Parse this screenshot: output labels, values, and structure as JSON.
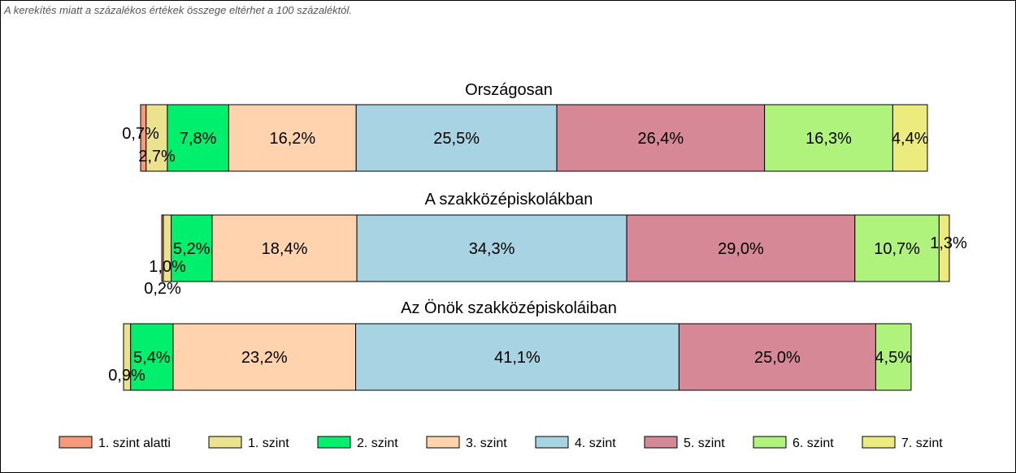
{
  "note": "A kerekítés miatt a  százalékos értékek összege eltérhet a 100 százaléktól.",
  "chart_data": {
    "type": "bar",
    "orientation": "horizontal",
    "stacked": true,
    "categories": [
      "Országosan",
      "A szakközépiskolákban",
      "Az Önök szakközépiskoláiban"
    ],
    "series": [
      {
        "name": "1. szint alatti",
        "color": "#F79A79",
        "values": [
          0.7,
          0.2,
          0.0
        ],
        "labels": [
          "0,7%",
          "0,2%",
          ""
        ]
      },
      {
        "name": "1. szint",
        "color": "#EBE28E",
        "values": [
          2.7,
          1.0,
          0.9
        ],
        "labels": [
          "2,7%",
          "1,0%",
          "0,9%"
        ]
      },
      {
        "name": "2. szint",
        "color": "#00F06E",
        "values": [
          7.8,
          5.2,
          5.4
        ],
        "labels": [
          "7,8%",
          "5,2%",
          "5,4%"
        ]
      },
      {
        "name": "3. szint",
        "color": "#FFD3AE",
        "values": [
          16.2,
          18.4,
          23.2
        ],
        "labels": [
          "16,2%",
          "18,4%",
          "23,2%"
        ]
      },
      {
        "name": "4. szint",
        "color": "#A8D3E2",
        "values": [
          25.5,
          34.3,
          41.1
        ],
        "labels": [
          "25,5%",
          "34,3%",
          "41,1%"
        ]
      },
      {
        "name": "5. szint",
        "color": "#D78897",
        "values": [
          26.4,
          29.0,
          25.0
        ],
        "labels": [
          "26,4%",
          "29,0%",
          "25,0%"
        ]
      },
      {
        "name": "6. szint",
        "color": "#AFF27C",
        "values": [
          16.3,
          10.7,
          4.5
        ],
        "labels": [
          "16,3%",
          "10,7%",
          "4,5%"
        ]
      },
      {
        "name": "7. szint",
        "color": "#EBEB7E",
        "values": [
          4.4,
          1.3,
          0.0
        ],
        "labels": [
          "4,4%",
          "1,3%",
          ""
        ]
      }
    ],
    "legend_position": "bottom"
  }
}
